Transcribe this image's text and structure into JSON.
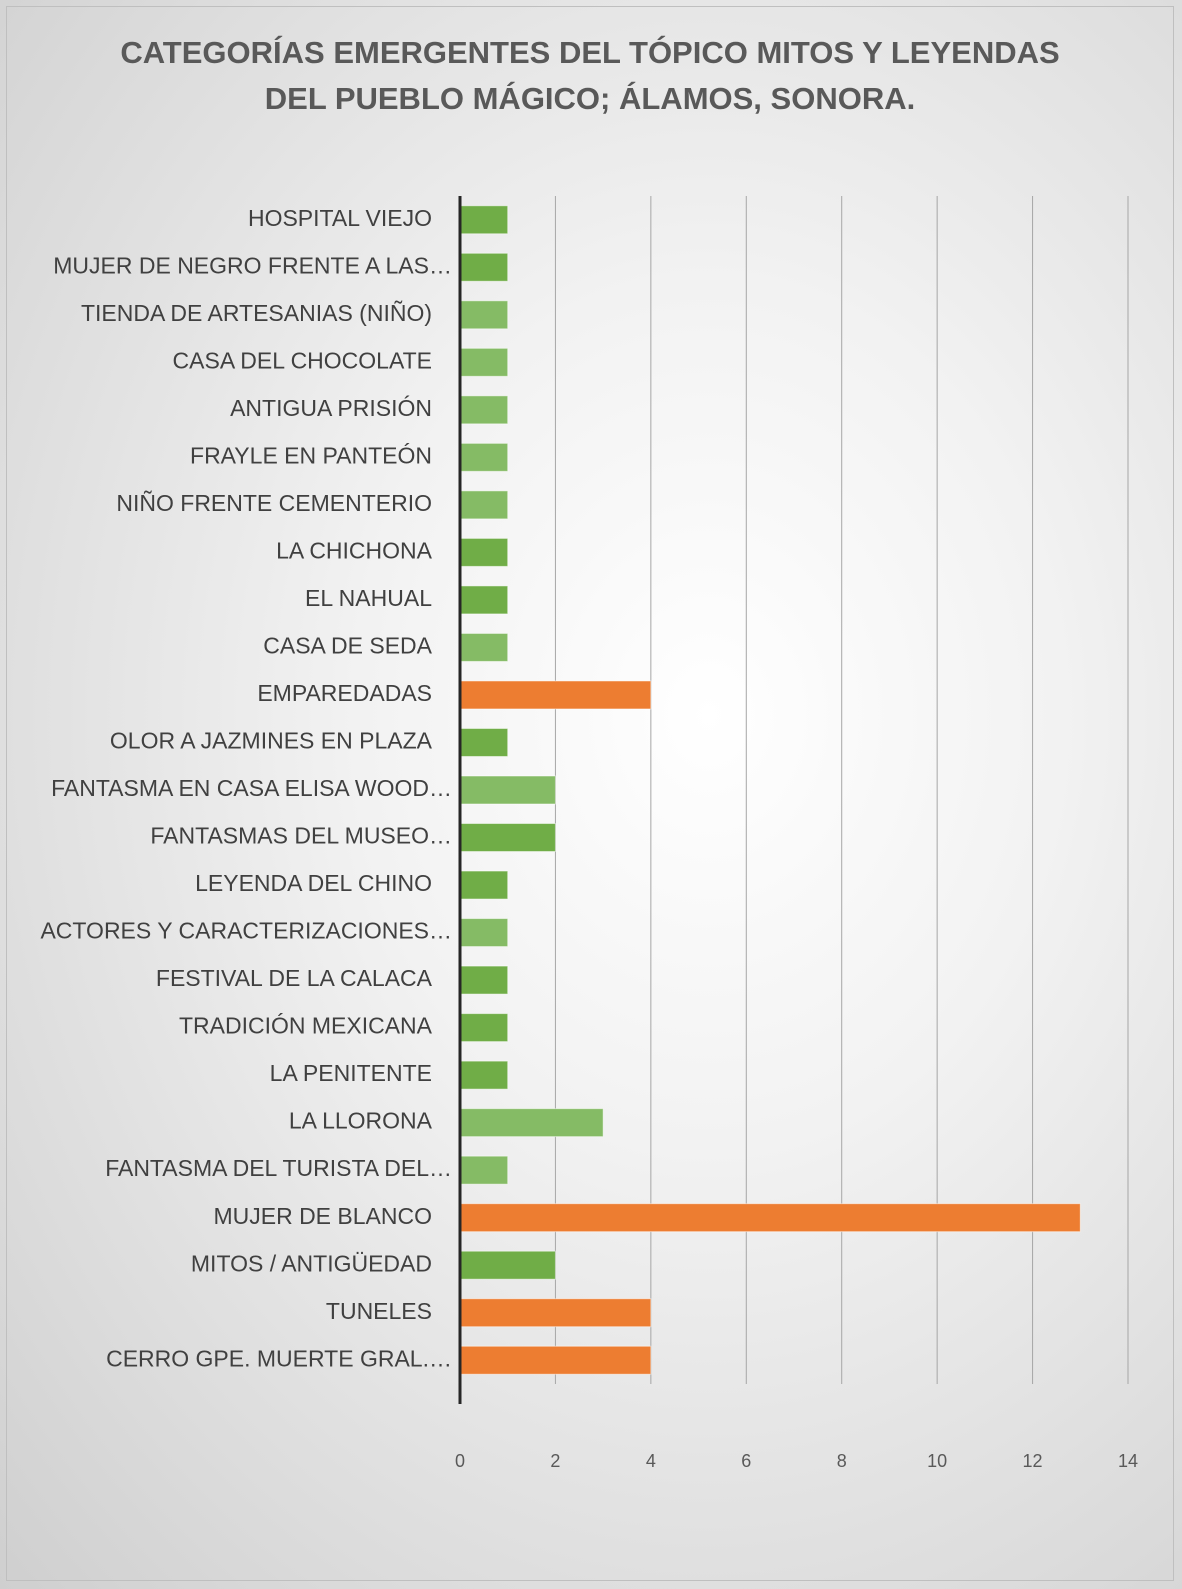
{
  "chart_data": {
    "type": "barh",
    "title": "CATEGORÍAS EMERGENTES DEL TÓPICO MITOS Y LEYENDAS DEL PUEBLO MÁGICO; ÁLAMOS, SONORA.",
    "categories": [
      "HOSPITAL VIEJO",
      "MUJER DE NEGRO FRENTE A LAS…",
      "TIENDA DE ARTESANIAS (NIÑO)",
      "CASA DEL CHOCOLATE",
      "ANTIGUA PRISIÓN",
      "FRAYLE EN PANTEÓN",
      "NIÑO FRENTE  CEMENTERIO",
      "LA CHICHONA",
      "EL NAHUAL",
      "CASA DE SEDA",
      "EMPAREDADAS",
      "OLOR A JAZMINES EN PLAZA",
      "FANTASMA EN CASA ELISA WOOD…",
      "FANTASMAS DEL MUSEO…",
      "LEYENDA DEL CHINO",
      "ACTORES Y CARACTERIZACIONES…",
      "FESTIVAL DE LA CALACA",
      "TRADICIÓN MEXICANA",
      "LA PENITENTE",
      "LA LLORONA",
      "FANTASMA DEL TURISTA DEL…",
      "MUJER DE BLANCO",
      "MITOS / ANTIGÜEDAD",
      "TUNELES",
      "CERRO GPE. MUERTE GRAL.…"
    ],
    "values": [
      1,
      1,
      1,
      1,
      1,
      1,
      1,
      1,
      1,
      1,
      4,
      1,
      2,
      2,
      1,
      1,
      1,
      1,
      1,
      3,
      1,
      13,
      2,
      4,
      4
    ],
    "colors": [
      "#70ad47",
      "#70ad47",
      "#85bb65",
      "#85bb65",
      "#85bb65",
      "#85bb65",
      "#85bb65",
      "#70ad47",
      "#70ad47",
      "#85bb65",
      "#ed7d31",
      "#70ad47",
      "#85bb65",
      "#70ad47",
      "#70ad47",
      "#85bb65",
      "#70ad47",
      "#70ad47",
      "#70ad47",
      "#85bb65",
      "#85bb65",
      "#ed7d31",
      "#70ad47",
      "#ed7d31",
      "#ed7d31"
    ],
    "xlim": [
      0,
      14
    ],
    "xticks": [
      0,
      2,
      4,
      6,
      8,
      10,
      12,
      14
    ],
    "grid": true
  }
}
